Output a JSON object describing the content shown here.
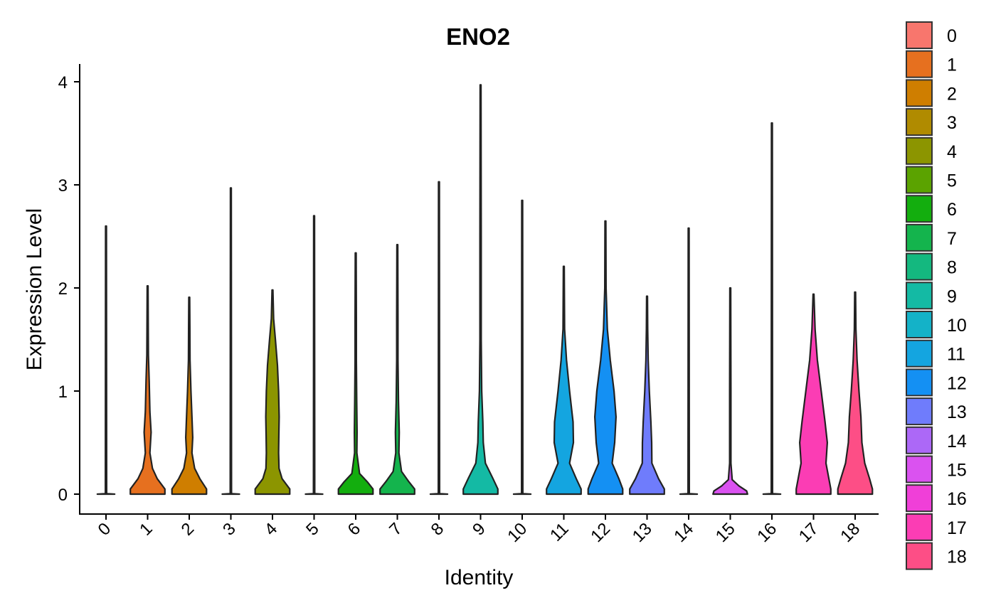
{
  "chart_data": {
    "type": "violin",
    "title": "ENO2",
    "xlabel": "Identity",
    "ylabel": "Expression Level",
    "ylim": [
      -0.2,
      4.18
    ],
    "y_ticks": [
      "0",
      "1",
      "2",
      "3",
      "4"
    ],
    "legend_position": "right",
    "categories": [
      "0",
      "1",
      "2",
      "3",
      "4",
      "5",
      "6",
      "7",
      "8",
      "9",
      "10",
      "11",
      "12",
      "13",
      "14",
      "15",
      "16",
      "17",
      "18"
    ],
    "colors": [
      "#F8766D",
      "#E6701F",
      "#CF7E00",
      "#B08B00",
      "#8C9500",
      "#5BA300",
      "#13AE0E",
      "#14B44D",
      "#14B87F",
      "#14BAA4",
      "#14B2C8",
      "#14A5E0",
      "#1490F3",
      "#6F7CFC",
      "#AC68F7",
      "#DA52F0",
      "#F03FD8",
      "#FB3DB4",
      "#FD4E86"
    ],
    "max_values": [
      2.6,
      2.02,
      1.91,
      2.97,
      1.98,
      2.7,
      2.34,
      2.42,
      3.03,
      3.97,
      2.85,
      2.21,
      2.65,
      1.92,
      2.58,
      2.0,
      3.6,
      1.94,
      1.96
    ],
    "density_profiles": [
      [
        [
          0,
          0.45
        ],
        [
          0.005,
          0.02
        ],
        [
          0.02,
          0
        ]
      ],
      [
        [
          0,
          0.9
        ],
        [
          0.05,
          0.9
        ],
        [
          0.15,
          0.5
        ],
        [
          0.25,
          0.25
        ],
        [
          0.4,
          0.12
        ],
        [
          0.6,
          0.18
        ],
        [
          0.8,
          0.12
        ],
        [
          1.1,
          0.08
        ],
        [
          1.35,
          0.04
        ],
        [
          1.6,
          0.015
        ],
        [
          2.02,
          0
        ]
      ],
      [
        [
          0,
          0.9
        ],
        [
          0.05,
          0.9
        ],
        [
          0.15,
          0.55
        ],
        [
          0.25,
          0.28
        ],
        [
          0.4,
          0.14
        ],
        [
          0.55,
          0.18
        ],
        [
          0.75,
          0.14
        ],
        [
          1.0,
          0.09
        ],
        [
          1.3,
          0.04
        ],
        [
          1.6,
          0.015
        ],
        [
          1.91,
          0
        ]
      ],
      [
        [
          0,
          0.45
        ],
        [
          0.005,
          0.02
        ],
        [
          0.02,
          0
        ]
      ],
      [
        [
          0,
          0.9
        ],
        [
          0.05,
          0.9
        ],
        [
          0.15,
          0.5
        ],
        [
          0.25,
          0.34
        ],
        [
          0.4,
          0.32
        ],
        [
          0.55,
          0.33
        ],
        [
          0.75,
          0.35
        ],
        [
          1.0,
          0.32
        ],
        [
          1.25,
          0.26
        ],
        [
          1.5,
          0.15
        ],
        [
          1.7,
          0.06
        ],
        [
          1.98,
          0
        ]
      ],
      [
        [
          0,
          0.45
        ],
        [
          0.005,
          0.02
        ],
        [
          0.02,
          0
        ]
      ],
      [
        [
          0,
          0.9
        ],
        [
          0.05,
          0.9
        ],
        [
          0.12,
          0.6
        ],
        [
          0.2,
          0.2
        ],
        [
          0.4,
          0.06
        ],
        [
          0.6,
          0.07
        ],
        [
          0.9,
          0.05
        ],
        [
          1.3,
          0.03
        ],
        [
          1.7,
          0.01
        ],
        [
          2.34,
          0
        ]
      ],
      [
        [
          0,
          0.9
        ],
        [
          0.05,
          0.9
        ],
        [
          0.12,
          0.6
        ],
        [
          0.22,
          0.22
        ],
        [
          0.4,
          0.08
        ],
        [
          0.6,
          0.1
        ],
        [
          0.9,
          0.06
        ],
        [
          1.3,
          0.03
        ],
        [
          1.7,
          0.01
        ],
        [
          2.42,
          0
        ]
      ],
      [
        [
          0,
          0.45
        ],
        [
          0.005,
          0.02
        ],
        [
          0.02,
          0
        ]
      ],
      [
        [
          0,
          0.9
        ],
        [
          0.05,
          0.9
        ],
        [
          0.15,
          0.65
        ],
        [
          0.3,
          0.25
        ],
        [
          0.5,
          0.14
        ],
        [
          0.7,
          0.12
        ],
        [
          1.0,
          0.06
        ],
        [
          1.5,
          0.02
        ],
        [
          2.5,
          0.01
        ],
        [
          3.97,
          0
        ]
      ],
      [
        [
          0,
          0.45
        ],
        [
          0.005,
          0.02
        ],
        [
          0.02,
          0
        ]
      ],
      [
        [
          0,
          0.9
        ],
        [
          0.05,
          0.9
        ],
        [
          0.15,
          0.65
        ],
        [
          0.3,
          0.3
        ],
        [
          0.5,
          0.5
        ],
        [
          0.7,
          0.48
        ],
        [
          1.0,
          0.3
        ],
        [
          1.3,
          0.14
        ],
        [
          1.6,
          0.04
        ],
        [
          2.21,
          0
        ]
      ],
      [
        [
          0,
          0.9
        ],
        [
          0.05,
          0.9
        ],
        [
          0.15,
          0.7
        ],
        [
          0.3,
          0.35
        ],
        [
          0.5,
          0.48
        ],
        [
          0.75,
          0.55
        ],
        [
          1.0,
          0.45
        ],
        [
          1.3,
          0.25
        ],
        [
          1.6,
          0.1
        ],
        [
          2.0,
          0.02
        ],
        [
          2.65,
          0
        ]
      ],
      [
        [
          0,
          0.9
        ],
        [
          0.05,
          0.9
        ],
        [
          0.15,
          0.6
        ],
        [
          0.3,
          0.25
        ],
        [
          0.5,
          0.24
        ],
        [
          0.7,
          0.2
        ],
        [
          1.0,
          0.12
        ],
        [
          1.3,
          0.06
        ],
        [
          1.6,
          0.02
        ],
        [
          1.92,
          0
        ]
      ],
      [
        [
          0,
          0.45
        ],
        [
          0.005,
          0.02
        ],
        [
          0.02,
          0
        ]
      ],
      [
        [
          0,
          0.9
        ],
        [
          0.03,
          0.85
        ],
        [
          0.08,
          0.45
        ],
        [
          0.14,
          0.1
        ],
        [
          0.3,
          0.02
        ],
        [
          0.6,
          0.03
        ],
        [
          1.0,
          0.01
        ],
        [
          2.0,
          0
        ]
      ],
      [
        [
          0,
          0.45
        ],
        [
          0.005,
          0.02
        ],
        [
          0.02,
          0
        ]
      ],
      [
        [
          0,
          0.9
        ],
        [
          0.05,
          0.9
        ],
        [
          0.15,
          0.8
        ],
        [
          0.3,
          0.65
        ],
        [
          0.5,
          0.72
        ],
        [
          0.7,
          0.6
        ],
        [
          1.0,
          0.4
        ],
        [
          1.3,
          0.2
        ],
        [
          1.6,
          0.08
        ],
        [
          1.94,
          0
        ]
      ],
      [
        [
          0,
          0.9
        ],
        [
          0.05,
          0.9
        ],
        [
          0.15,
          0.75
        ],
        [
          0.3,
          0.5
        ],
        [
          0.5,
          0.35
        ],
        [
          0.75,
          0.3
        ],
        [
          1.0,
          0.2
        ],
        [
          1.3,
          0.1
        ],
        [
          1.6,
          0.04
        ],
        [
          1.96,
          0
        ]
      ]
    ]
  }
}
